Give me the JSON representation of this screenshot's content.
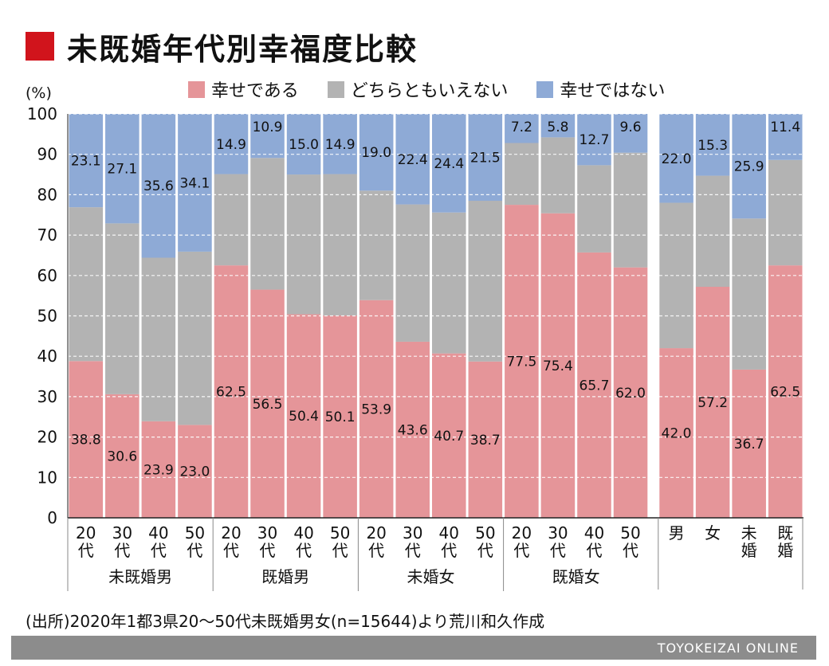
{
  "title": "未既婚年代別幸福度比較",
  "unit_label": "(%)",
  "legend": [
    {
      "label": "幸せである",
      "color": "#e59599"
    },
    {
      "label": "どちらともいえない",
      "color": "#b3b3b3"
    },
    {
      "label": "幸せではない",
      "color": "#8eaad6"
    }
  ],
  "chart_data": {
    "type": "bar",
    "stacked": true,
    "ylim": [
      0,
      100
    ],
    "yticks": [
      "0",
      "10",
      "20",
      "30",
      "40",
      "50",
      "60",
      "70",
      "80",
      "90",
      "100"
    ],
    "grid": true,
    "groups": [
      {
        "label": "未既婚男",
        "categories": [
          "20\n代",
          "30\n代",
          "40\n代",
          "50\n代"
        ]
      },
      {
        "label": "既婚男",
        "categories": [
          "20\n代",
          "30\n代",
          "40\n代",
          "50\n代"
        ]
      },
      {
        "label": "未婚女",
        "categories": [
          "20\n代",
          "30\n代",
          "40\n代",
          "50\n代"
        ]
      },
      {
        "label": "既婚女",
        "categories": [
          "20\n代",
          "30\n代",
          "40\n代",
          "50\n代"
        ]
      },
      {
        "label": "",
        "categories": [
          "男",
          "女",
          "未\n婚",
          "既\n婚"
        ]
      }
    ],
    "series": [
      {
        "name": "幸せである",
        "color": "#e59599",
        "values": [
          38.8,
          30.6,
          23.9,
          23.0,
          62.5,
          56.5,
          50.4,
          50.1,
          53.9,
          43.6,
          40.7,
          38.7,
          77.5,
          75.4,
          65.7,
          62.0,
          42.0,
          57.2,
          36.7,
          62.5
        ],
        "labels": [
          "38.8",
          "30.6",
          "23.9",
          "23.0",
          "62.5",
          "56.5",
          "50.4",
          "50.1",
          "53.9",
          "43.6",
          "40.7",
          "38.7",
          "77.5",
          "75.4",
          "65.7",
          "62.0",
          "42.0",
          "57.2",
          "36.7",
          "62.5"
        ]
      },
      {
        "name": "どちらともいえない",
        "color": "#b3b3b3",
        "values": [
          38.1,
          42.3,
          40.5,
          42.9,
          22.6,
          32.6,
          34.6,
          35.0,
          27.1,
          34.0,
          34.9,
          39.8,
          15.3,
          18.8,
          21.6,
          28.4,
          36.0,
          27.5,
          37.4,
          26.1
        ],
        "labels": []
      },
      {
        "name": "幸せではない",
        "color": "#8eaad6",
        "values": [
          23.1,
          27.1,
          35.6,
          34.1,
          14.9,
          10.9,
          15.0,
          14.9,
          19.0,
          22.4,
          24.4,
          21.5,
          7.2,
          5.8,
          12.7,
          9.6,
          22.0,
          15.3,
          25.9,
          11.4
        ],
        "labels": [
          "23.1",
          "27.1",
          "35.6",
          "34.1",
          "14.9",
          "10.9",
          "15.0",
          "14.9",
          "19.0",
          "22.4",
          "24.4",
          "21.5",
          "7.2",
          "5.8",
          "12.7",
          "9.6",
          "22.0",
          "15.3",
          "25.9",
          "11.4"
        ]
      }
    ]
  },
  "source": "(出所)2020年1都3県20〜50代未既婚男女(n=15644)より荒川和久作成",
  "footer": "TOYOKEIZAI ONLINE"
}
